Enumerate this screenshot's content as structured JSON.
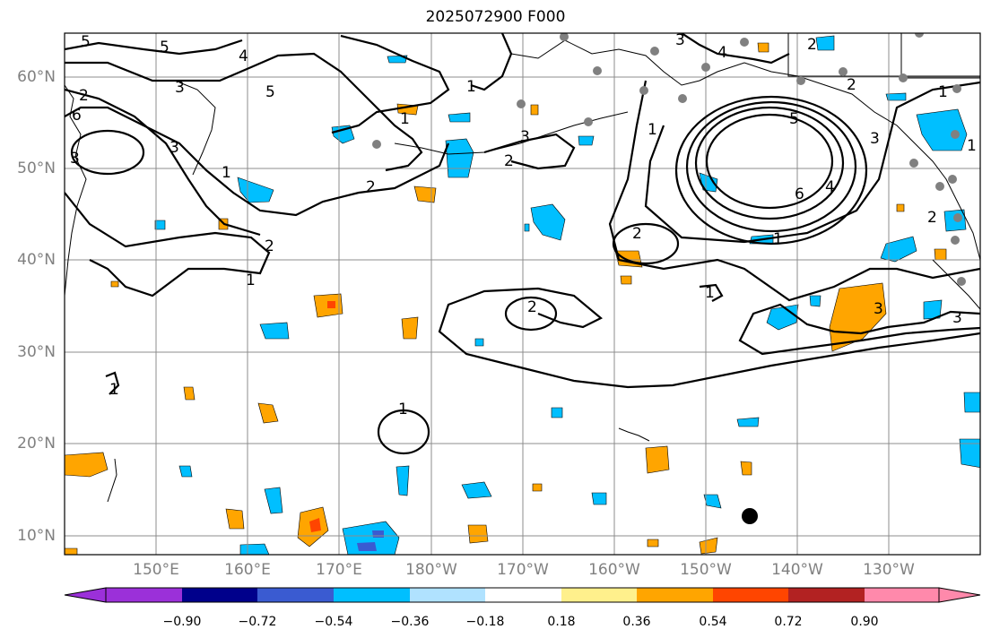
{
  "title": "2025072900 F000",
  "map": {
    "lat_labels": [
      "60°N",
      "50°N",
      "40°N",
      "30°N",
      "20°N",
      "10°N"
    ],
    "lon_labels": [
      "150°E",
      "160°E",
      "170°E",
      "180°W",
      "170°W",
      "160°W",
      "150°W",
      "140°W",
      "130°W"
    ],
    "contour_labels": [
      "5",
      "5",
      "4",
      "3",
      "2",
      "5",
      "3",
      "6",
      "3",
      "1",
      "2",
      "1",
      "1",
      "2",
      "3",
      "2",
      "1",
      "2",
      "3",
      "4",
      "6",
      "5",
      "4",
      "3",
      "2",
      "2",
      "1",
      "1",
      "2",
      "1",
      "1",
      "2",
      "3",
      "3",
      "1",
      "1",
      "1"
    ],
    "colors": {
      "contour": "#000000",
      "grid": "#8c8c8c",
      "coast": "#000000",
      "station": "#808080",
      "neg_fill": "#00bfff",
      "pos_fill": "#ffa500",
      "pos_strong": "#ff4500",
      "neg_strong": "#3a5bd1"
    }
  },
  "colorbar": {
    "colors": [
      "#9b30d9",
      "#00008b",
      "#3a5bd1",
      "#00bfff",
      "#b0e2ff",
      "#ffffff",
      "#fff08c",
      "#ffa500",
      "#ff4500",
      "#b22222",
      "#ff89ab",
      "#ff89ab"
    ],
    "extend_low_color": "#9b30d9",
    "extend_high_color": "#ff89ab",
    "ticks": [
      "−0.90",
      "−0.72",
      "−0.54",
      "−0.36",
      "−0.18",
      "0.18",
      "0.36",
      "0.54",
      "0.72",
      "0.90"
    ]
  }
}
